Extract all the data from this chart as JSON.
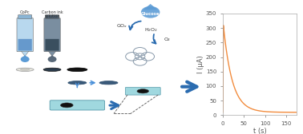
{
  "xlabel": "t (s)",
  "ylabel": "I (μA)",
  "xlim": [
    0,
    175
  ],
  "ylim": [
    0,
    350
  ],
  "xticks": [
    0,
    50,
    100,
    150
  ],
  "yticks": [
    0,
    50,
    100,
    150,
    200,
    250,
    300,
    350
  ],
  "curve_color": "#F28C3E",
  "curve_peak": 310,
  "curve_decay": 0.048,
  "curve_baseline": 10,
  "background_color": "#ffffff",
  "tick_fontsize": 5,
  "label_fontsize": 6,
  "outer_bg": "#ffffff",
  "border_color": "#bbbbbb",
  "blue_dark": "#2b6cb0",
  "blue_mid": "#4a90d9",
  "blue_light": "#a8d4f0",
  "blue_drop": "#5b9bd5",
  "gray_dark": "#4a4a4a",
  "gray_tube": "#6b8fa8",
  "gray_ink": "#607080",
  "teal_tube": "#a0d8df"
}
